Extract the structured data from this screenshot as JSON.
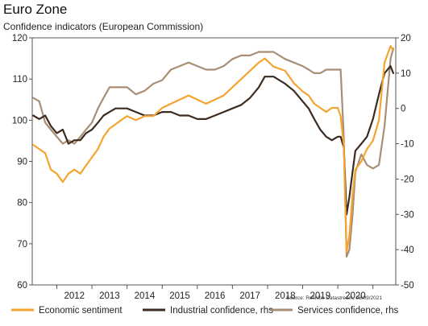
{
  "chart_data": {
    "type": "line",
    "title": "Euro Zone",
    "subtitle": "Confidence indicators (European Commission)",
    "source": "Source: Refinitiv Datastream, 06/09/2021",
    "x_range": [
      2011.3,
      2021.65
    ],
    "x_ticks": [
      "2012",
      "2013",
      "2014",
      "2015",
      "2016",
      "2017",
      "2018",
      "2019",
      "2020"
    ],
    "y_left": {
      "range": [
        60,
        120
      ],
      "ticks": [
        "60",
        "70",
        "80",
        "90",
        "100",
        "110",
        "120"
      ]
    },
    "y_right": {
      "range": [
        -50,
        20
      ],
      "ticks": [
        "-50",
        "-40",
        "-30",
        "-20",
        "-10",
        "0",
        "10",
        "20"
      ]
    },
    "grid": false,
    "legend_position": "bottom",
    "series": [
      {
        "name": "Economic sentiment",
        "axis": "left",
        "color": "#F5A431",
        "x": [
          2011.33,
          2011.5,
          2011.67,
          2011.83,
          2012.0,
          2012.17,
          2012.33,
          2012.5,
          2012.67,
          2012.83,
          2013.0,
          2013.17,
          2013.33,
          2013.5,
          2013.67,
          2013.83,
          2014.0,
          2014.25,
          2014.5,
          2014.75,
          2015.0,
          2015.25,
          2015.5,
          2015.75,
          2016.0,
          2016.25,
          2016.5,
          2016.75,
          2017.0,
          2017.25,
          2017.5,
          2017.75,
          2017.92,
          2018.17,
          2018.5,
          2018.75,
          2019.0,
          2019.17,
          2019.33,
          2019.5,
          2019.67,
          2019.83,
          2020.0,
          2020.08,
          2020.17,
          2020.25,
          2020.33,
          2020.42,
          2020.5,
          2020.67,
          2020.83,
          2021.0,
          2021.17,
          2021.33,
          2021.5,
          2021.58
        ],
        "values": [
          94,
          93,
          92,
          88,
          87,
          85,
          87,
          88,
          87,
          89,
          91,
          93,
          96,
          98,
          99,
          100,
          101,
          100,
          101,
          101,
          103,
          104,
          105,
          106,
          105,
          104,
          105,
          106,
          108,
          110,
          112,
          114,
          115,
          113,
          112,
          109,
          107,
          106,
          104,
          103,
          102,
          103,
          103,
          101,
          94,
          68,
          72,
          82,
          88,
          90,
          93,
          95,
          100,
          114,
          118,
          117
        ]
      },
      {
        "name": "Industrial confidence, rhs",
        "axis": "right",
        "color": "#3D2B1F",
        "x": [
          2011.33,
          2011.5,
          2011.67,
          2011.83,
          2012.0,
          2012.17,
          2012.33,
          2012.5,
          2012.67,
          2012.83,
          2013.0,
          2013.17,
          2013.33,
          2013.5,
          2013.67,
          2013.83,
          2014.0,
          2014.25,
          2014.5,
          2014.75,
          2015.0,
          2015.25,
          2015.5,
          2015.75,
          2016.0,
          2016.25,
          2016.5,
          2016.75,
          2017.0,
          2017.25,
          2017.5,
          2017.75,
          2017.92,
          2018.17,
          2018.5,
          2018.75,
          2019.0,
          2019.17,
          2019.33,
          2019.5,
          2019.67,
          2019.83,
          2020.0,
          2020.08,
          2020.17,
          2020.25,
          2020.33,
          2020.42,
          2020.5,
          2020.67,
          2020.83,
          2021.0,
          2021.17,
          2021.33,
          2021.5,
          2021.58
        ],
        "values": [
          -2,
          -3,
          -2,
          -5,
          -7,
          -6,
          -10,
          -9,
          -9,
          -7,
          -6,
          -4,
          -2,
          -1,
          0,
          0,
          0,
          -1,
          -2,
          -2,
          -1,
          -1,
          -2,
          -2,
          -3,
          -3,
          -2,
          -1,
          0,
          1,
          3,
          6,
          9,
          9,
          7,
          5,
          2,
          0,
          -3,
          -6,
          -8,
          -9,
          -8,
          -8,
          -11,
          -30,
          -25,
          -18,
          -12,
          -10,
          -8,
          -3,
          4,
          10,
          12,
          10
        ]
      },
      {
        "name": "Services confidence, rhs",
        "axis": "right",
        "color": "#A88E75",
        "x": [
          2011.33,
          2011.5,
          2011.67,
          2011.83,
          2012.0,
          2012.17,
          2012.33,
          2012.5,
          2012.67,
          2012.83,
          2013.0,
          2013.17,
          2013.33,
          2013.5,
          2013.67,
          2013.83,
          2014.0,
          2014.25,
          2014.5,
          2014.75,
          2015.0,
          2015.25,
          2015.5,
          2015.75,
          2016.0,
          2016.25,
          2016.5,
          2016.75,
          2017.0,
          2017.25,
          2017.5,
          2017.75,
          2017.92,
          2018.17,
          2018.5,
          2018.75,
          2019.0,
          2019.17,
          2019.33,
          2019.5,
          2019.67,
          2019.83,
          2020.0,
          2020.08,
          2020.17,
          2020.25,
          2020.33,
          2020.42,
          2020.5,
          2020.67,
          2020.83,
          2021.0,
          2021.17,
          2021.33,
          2021.5,
          2021.58
        ],
        "values": [
          3,
          2,
          -4,
          -6,
          -8,
          -10,
          -9,
          -10,
          -8,
          -6,
          -4,
          0,
          3,
          6,
          6,
          6,
          6,
          4,
          5,
          7,
          8,
          11,
          12,
          13,
          12,
          11,
          11,
          12,
          14,
          15,
          15,
          16,
          16,
          16,
          14,
          13,
          12,
          11,
          10,
          10,
          11,
          11,
          11,
          11,
          -8,
          -42,
          -40,
          -30,
          -18,
          -13,
          -16,
          -17,
          -16,
          -5,
          14,
          17
        ]
      }
    ]
  }
}
